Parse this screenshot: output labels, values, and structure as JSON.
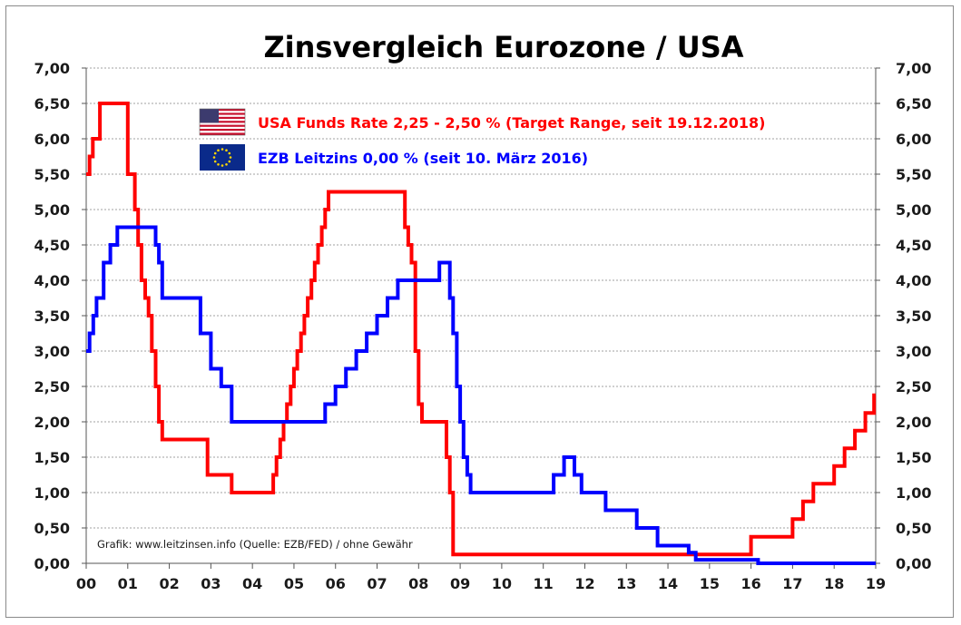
{
  "chart_data": {
    "type": "line",
    "title": "Zinsvergleich Eurozone / USA",
    "xlabel": "",
    "ylabel": "",
    "x_ticks": [
      "00",
      "01",
      "02",
      "03",
      "04",
      "05",
      "06",
      "07",
      "08",
      "09",
      "10",
      "11",
      "12",
      "13",
      "14",
      "15",
      "16",
      "17",
      "18",
      "19"
    ],
    "xlim": [
      0,
      19
    ],
    "y_ticks": [
      "0,00",
      "0,50",
      "1,00",
      "1,50",
      "2,00",
      "2,50",
      "3,00",
      "3,50",
      "4,00",
      "4,50",
      "5,00",
      "5,50",
      "6,00",
      "6,50",
      "7,00"
    ],
    "ylim": [
      0,
      7
    ],
    "grid": true,
    "grid_style": "dashed horizontal",
    "legend_placement": "top-center",
    "source_note": "Grafik: www.leitzinsen.info (Quelle: EZB/FED) / ohne Gewähr",
    "series": [
      {
        "name": "USA Funds Rate 2,25 - 2,50 % (Target Range, seit 19.12.2018)",
        "color": "#ff0000",
        "icon": "usa-flag-icon",
        "step": true,
        "x": [
          0.0,
          0.08,
          0.16,
          0.33,
          0.58,
          1.0,
          1.17,
          1.25,
          1.33,
          1.42,
          1.5,
          1.58,
          1.67,
          1.75,
          1.83,
          2.92,
          3.5,
          4.5,
          4.58,
          4.67,
          4.75,
          4.83,
          4.92,
          5.0,
          5.08,
          5.17,
          5.25,
          5.33,
          5.42,
          5.5,
          5.58,
          5.67,
          5.75,
          5.83,
          5.92,
          6.0,
          6.08,
          6.17,
          6.25,
          6.33,
          6.42,
          6.5,
          7.67,
          7.75,
          7.83,
          7.92,
          8.0,
          8.08,
          8.17,
          8.25,
          8.67,
          8.75,
          8.83,
          8.92,
          16.0,
          17.0,
          17.25,
          17.5,
          18.0,
          18.25,
          18.5,
          18.75,
          18.96,
          19.0
        ],
        "values": [
          5.5,
          5.75,
          6.0,
          6.5,
          6.5,
          5.5,
          5.0,
          4.5,
          4.0,
          3.75,
          3.5,
          3.0,
          2.5,
          2.0,
          1.75,
          1.25,
          1.0,
          1.25,
          1.5,
          1.75,
          2.0,
          2.25,
          2.5,
          2.75,
          3.0,
          3.25,
          3.5,
          3.75,
          4.0,
          4.25,
          4.5,
          4.75,
          5.0,
          5.25,
          5.25,
          5.25,
          5.25,
          5.25,
          5.25,
          5.25,
          5.25,
          5.25,
          4.75,
          4.5,
          4.25,
          3.0,
          2.25,
          2.0,
          2.0,
          2.0,
          1.5,
          1.0,
          0.125,
          0.125,
          0.375,
          0.625,
          0.875,
          1.125,
          1.375,
          1.625,
          1.875,
          2.125,
          2.375,
          2.375
        ]
      },
      {
        "name": "EZB Leitzins 0,00 %  (seit 10. März 2016)",
        "color": "#0000ff",
        "icon": "eu-flag-icon",
        "step": true,
        "x": [
          0.0,
          0.08,
          0.17,
          0.25,
          0.42,
          0.58,
          0.75,
          1.67,
          1.75,
          1.83,
          2.75,
          3.0,
          3.25,
          3.5,
          4.0,
          5.0,
          5.75,
          6.0,
          6.25,
          6.5,
          6.75,
          7.0,
          7.25,
          7.5,
          8.5,
          8.75,
          8.83,
          8.92,
          9.0,
          9.08,
          9.17,
          9.25,
          11.25,
          11.5,
          11.75,
          11.92,
          12.5,
          13.25,
          13.75,
          14.5,
          14.67,
          16.17,
          19.0
        ],
        "values": [
          3.0,
          3.25,
          3.5,
          3.75,
          4.25,
          4.5,
          4.75,
          4.5,
          4.25,
          3.75,
          3.25,
          2.75,
          2.5,
          2.0,
          2.0,
          2.0,
          2.25,
          2.5,
          2.75,
          3.0,
          3.25,
          3.5,
          3.75,
          4.0,
          4.25,
          3.75,
          3.25,
          2.5,
          2.0,
          1.5,
          1.25,
          1.0,
          1.25,
          1.5,
          1.25,
          1.0,
          0.75,
          0.5,
          0.25,
          0.15,
          0.05,
          0.0,
          0.0
        ]
      }
    ]
  }
}
